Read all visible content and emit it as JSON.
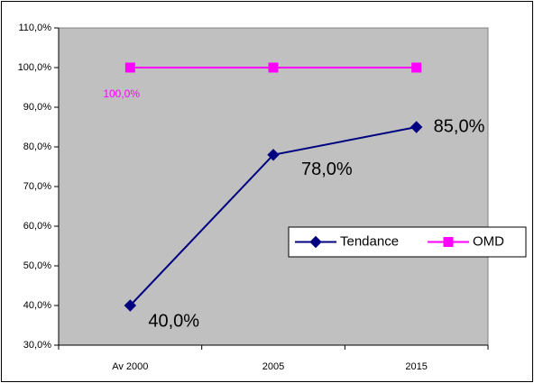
{
  "chart_data": {
    "type": "line",
    "categories": [
      "Av 2000",
      "2005",
      "2015"
    ],
    "series": [
      {
        "name": "Tendance",
        "color": "#000080",
        "values": [
          40,
          78,
          85
        ],
        "value_labels": [
          "40,0%",
          "78,0%",
          "85,0%"
        ]
      },
      {
        "name": "OMD",
        "color": "#ff00ff",
        "values": [
          100,
          100,
          100
        ],
        "value_labels": [
          "100,0%",
          null,
          null
        ]
      }
    ],
    "ylim": [
      30,
      110
    ],
    "yticks": [
      {
        "value": 30,
        "label": "30,0%"
      },
      {
        "value": 40,
        "label": "40,0%"
      },
      {
        "value": 50,
        "label": "50,0%"
      },
      {
        "value": 60,
        "label": "60,0%"
      },
      {
        "value": 70,
        "label": "70,0%"
      },
      {
        "value": 80,
        "label": "80,0%"
      },
      {
        "value": 90,
        "label": "90,0%"
      },
      {
        "value": 100,
        "label": "100,0%"
      },
      {
        "value": 110,
        "label": "110,0%"
      }
    ],
    "grid": false,
    "plot_background": "#c0c0c0",
    "legend_position": "right"
  }
}
